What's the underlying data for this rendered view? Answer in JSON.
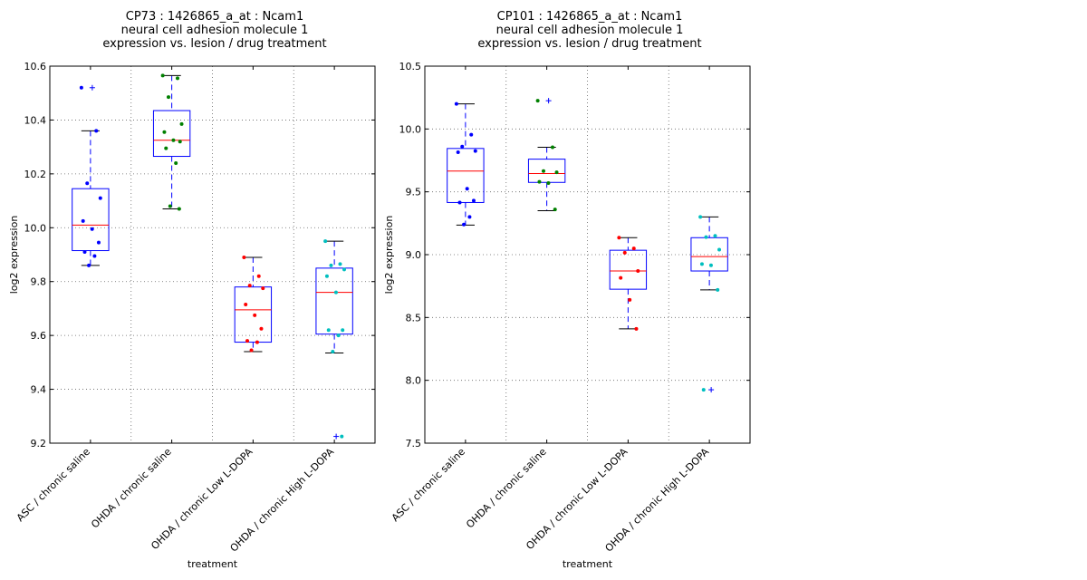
{
  "chart_data": [
    {
      "type": "box",
      "title_lines": [
        "CP73 : 1426865_a_at : Ncam1",
        "neural cell adhesion molecule 1",
        "expression vs. lesion / drug treatment"
      ],
      "xlabel": "treatment",
      "ylabel": "log2 expression",
      "ylim": [
        9.2,
        10.6
      ],
      "yticks": [
        "9.2",
        "9.4",
        "9.6",
        "9.8",
        "10.0",
        "10.2",
        "10.4",
        "10.6"
      ],
      "grid": true,
      "categories": [
        "ASC / chronic saline",
        "OHDA / chronic saline",
        "OHDA / chronic Low L-DOPA",
        "OHDA / chronic High L-DOPA"
      ],
      "series": [
        {
          "color": "#0000ff",
          "whisker_low": 9.86,
          "q1": 9.915,
          "median": 10.01,
          "q3": 10.145,
          "whisker_high": 10.36,
          "outliers": [
            10.52
          ],
          "points": [
            10.52,
            10.36,
            10.165,
            10.11,
            10.025,
            9.995,
            9.945,
            9.91,
            9.895,
            9.86
          ]
        },
        {
          "color": "#008000",
          "whisker_low": 10.07,
          "q1": 10.265,
          "median": 10.325,
          "q3": 10.435,
          "whisker_high": 10.565,
          "outliers": [],
          "points": [
            10.565,
            10.555,
            10.485,
            10.385,
            10.355,
            10.325,
            10.32,
            10.295,
            10.24,
            10.08,
            10.07
          ]
        },
        {
          "color": "#ff0000",
          "whisker_low": 9.54,
          "q1": 9.575,
          "median": 9.695,
          "q3": 9.78,
          "whisker_high": 9.89,
          "outliers": [],
          "points": [
            9.89,
            9.82,
            9.785,
            9.775,
            9.715,
            9.675,
            9.625,
            9.58,
            9.575,
            9.545
          ]
        },
        {
          "color": "#00bfbf",
          "whisker_low": 9.535,
          "q1": 9.605,
          "median": 9.76,
          "q3": 9.85,
          "whisker_high": 9.95,
          "outliers": [
            9.225
          ],
          "points": [
            9.95,
            9.865,
            9.86,
            9.845,
            9.82,
            9.76,
            9.62,
            9.62,
            9.6,
            9.54,
            9.225
          ]
        }
      ]
    },
    {
      "type": "box",
      "title_lines": [
        "CP101 : 1426865_a_at : Ncam1",
        "neural cell adhesion molecule 1",
        "expression vs. lesion / drug treatment"
      ],
      "xlabel": "treatment",
      "ylabel": "log2 expression",
      "ylim": [
        7.5,
        10.5
      ],
      "yticks": [
        "7.5",
        "8.0",
        "8.5",
        "9.0",
        "9.5",
        "10.0",
        "10.5"
      ],
      "grid": true,
      "categories": [
        "ASC / chronic saline",
        "OHDA / chronic saline",
        "OHDA / chronic Low L-DOPA",
        "OHDA / chronic High L-DOPA"
      ],
      "series": [
        {
          "color": "#0000ff",
          "whisker_low": 9.235,
          "q1": 9.415,
          "median": 9.665,
          "q3": 9.845,
          "whisker_high": 10.2,
          "outliers": [],
          "points": [
            10.2,
            9.955,
            9.86,
            9.825,
            9.815,
            9.525,
            9.43,
            9.415,
            9.3,
            9.24
          ]
        },
        {
          "color": "#008000",
          "whisker_low": 9.35,
          "q1": 9.575,
          "median": 9.645,
          "q3": 9.76,
          "whisker_high": 9.855,
          "outliers": [
            10.225
          ],
          "points": [
            10.225,
            9.855,
            9.665,
            9.655,
            9.58,
            9.57,
            9.36
          ]
        },
        {
          "color": "#ff0000",
          "whisker_low": 8.41,
          "q1": 8.725,
          "median": 8.87,
          "q3": 9.035,
          "whisker_high": 9.135,
          "outliers": [],
          "points": [
            9.135,
            9.05,
            9.015,
            8.87,
            8.815,
            8.64,
            8.41
          ]
        },
        {
          "color": "#00bfbf",
          "whisker_low": 8.72,
          "q1": 8.87,
          "median": 8.985,
          "q3": 9.135,
          "whisker_high": 9.3,
          "outliers": [
            7.925
          ],
          "points": [
            9.3,
            9.15,
            9.14,
            9.04,
            8.925,
            8.915,
            8.72,
            7.925
          ]
        }
      ]
    }
  ]
}
